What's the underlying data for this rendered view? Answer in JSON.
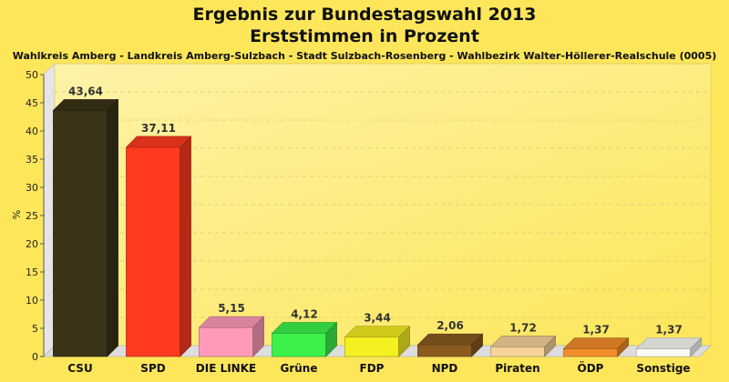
{
  "chart_data": {
    "type": "bar",
    "title": "Ergebnis zur Bundestagswahl 2013",
    "title_line2": "Erststimmen in Prozent",
    "subtitle": "Wahlkreis Amberg - Landkreis Amberg-Sulzbach - Stadt Sulzbach-Rosenberg - Wahlbezirk Walter-Höllerer-Realschule (0005)",
    "ylabel": "%",
    "xlabel": "",
    "ylim": [
      0,
      50
    ],
    "yticks": [
      0,
      5,
      10,
      15,
      20,
      25,
      30,
      35,
      40,
      45,
      50
    ],
    "grid": true,
    "three_d": true,
    "categories": [
      "CSU",
      "SPD",
      "DIE LINKE",
      "Grüne",
      "FDP",
      "NPD",
      "Piraten",
      "ÖDP",
      "Sonstige"
    ],
    "values": [
      43.64,
      37.11,
      5.15,
      4.12,
      3.44,
      2.06,
      1.72,
      1.37,
      1.37
    ],
    "value_labels": [
      "43,64",
      "37,11",
      "5,15",
      "4,12",
      "3,44",
      "2,06",
      "1,72",
      "1,37",
      "1,37"
    ],
    "colors": [
      "#3b3318",
      "#ff3a1f",
      "#ff9bb8",
      "#3cf24a",
      "#f5f020",
      "#8a5a1e",
      "#f7d39b",
      "#f38d2a",
      "#fbfbf5"
    ]
  }
}
